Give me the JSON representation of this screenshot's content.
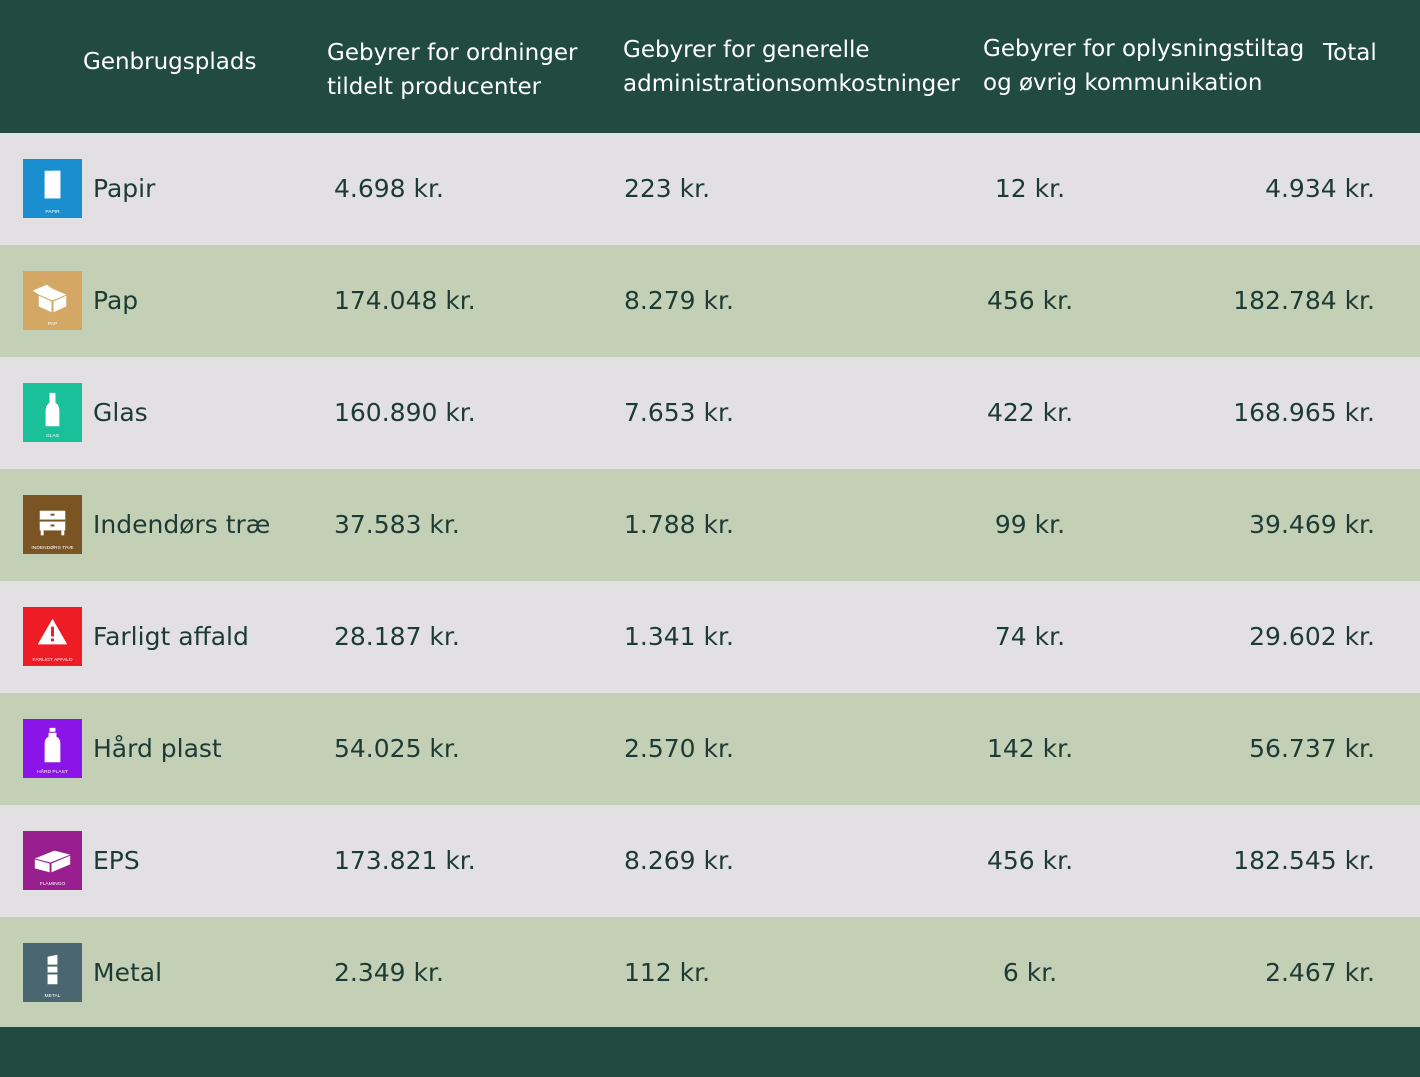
{
  "header": {
    "site_label": "Genbrugsplads",
    "producer_label": "Gebyrer for ordninger tildelt producenter",
    "admin_label": "Gebyrer for generelle administrationsomkostninger",
    "info_label": "Gebyrer for oplysningstiltag og øvrig kommunikation",
    "total_label": "Total"
  },
  "colors": {
    "header_bg": "#214a41",
    "row_light": "#e2e0e2",
    "row_green": "#c3d0b6",
    "text": "#1d3b34"
  },
  "rows": [
    {
      "name": "Papir",
      "icon": "paper-icon",
      "icon_label": "PAPIR",
      "icon_color": "#1a8fd0",
      "producer": "4.698 kr.",
      "admin": "223 kr.",
      "info": "12 kr.",
      "total": "4.934 kr."
    },
    {
      "name": "Pap",
      "icon": "cardboard-box-icon",
      "icon_label": "PAP",
      "icon_color": "#d4a764",
      "producer": "174.048 kr.",
      "admin": "8.279 kr.",
      "info": "456 kr.",
      "total": "182.784 kr."
    },
    {
      "name": "Glas",
      "icon": "glass-bottle-icon",
      "icon_label": "GLAS",
      "icon_color": "#19c09a",
      "producer": "160.890 kr.",
      "admin": "7.653 kr.",
      "info": "422 kr.",
      "total": "168.965 kr."
    },
    {
      "name": "Indendørs træ",
      "icon": "wood-furniture-icon",
      "icon_label": "INDENDØRS TRÆ",
      "icon_color": "#7a5422",
      "producer": "37.583 kr.",
      "admin": "1.788 kr.",
      "info": "99 kr.",
      "total": "39.469 kr."
    },
    {
      "name": "Farligt affald",
      "icon": "hazard-warning-icon",
      "icon_label": "FARLIGT AFFALD",
      "icon_color": "#ee1c24",
      "producer": "28.187 kr.",
      "admin": "1.341 kr.",
      "info": "74 kr.",
      "total": "29.602 kr."
    },
    {
      "name": "Hård plast",
      "icon": "plastic-bottle-icon",
      "icon_label": "HÅRD PLAST",
      "icon_color": "#8b14e8",
      "producer": "54.025 kr.",
      "admin": "2.570 kr.",
      "info": "142 kr.",
      "total": "56.737 kr."
    },
    {
      "name": "EPS",
      "icon": "styrofoam-icon",
      "icon_label": "FLAMINGO",
      "icon_color": "#9a1f8e",
      "producer": "173.821 kr.",
      "admin": "8.269 kr.",
      "info": "456 kr.",
      "total": "182.545 kr."
    },
    {
      "name": "Metal",
      "icon": "metal-can-icon",
      "icon_label": "METAL",
      "icon_color": "#4a6670",
      "producer": "2.349 kr.",
      "admin": "112 kr.",
      "info": "6 kr.",
      "total": "2.467 kr."
    }
  ]
}
